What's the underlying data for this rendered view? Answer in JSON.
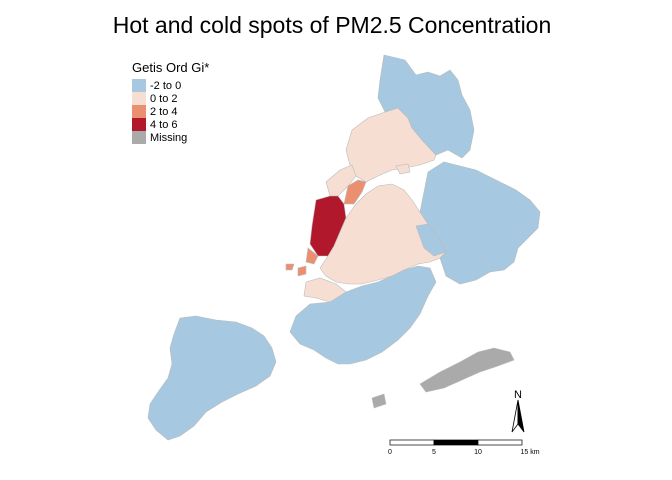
{
  "title": "Hot and cold spots of PM2.5 Concentration",
  "legend": {
    "title": "Getis Ord Gi*",
    "items": [
      {
        "label": "-2 to 0",
        "color": "#a6c8e0"
      },
      {
        "label": "0 to 2",
        "color": "#f7ded2"
      },
      {
        "label": "2 to 4",
        "color": "#ea9070"
      },
      {
        "label": "4 to 6",
        "color": "#b2182b"
      },
      {
        "label": "Missing",
        "color": "#aaaaaa"
      }
    ]
  },
  "north_arrow": {
    "label": "N"
  },
  "scale_bar": {
    "ticks": [
      "0",
      "5",
      "10",
      "15 km"
    ]
  }
}
